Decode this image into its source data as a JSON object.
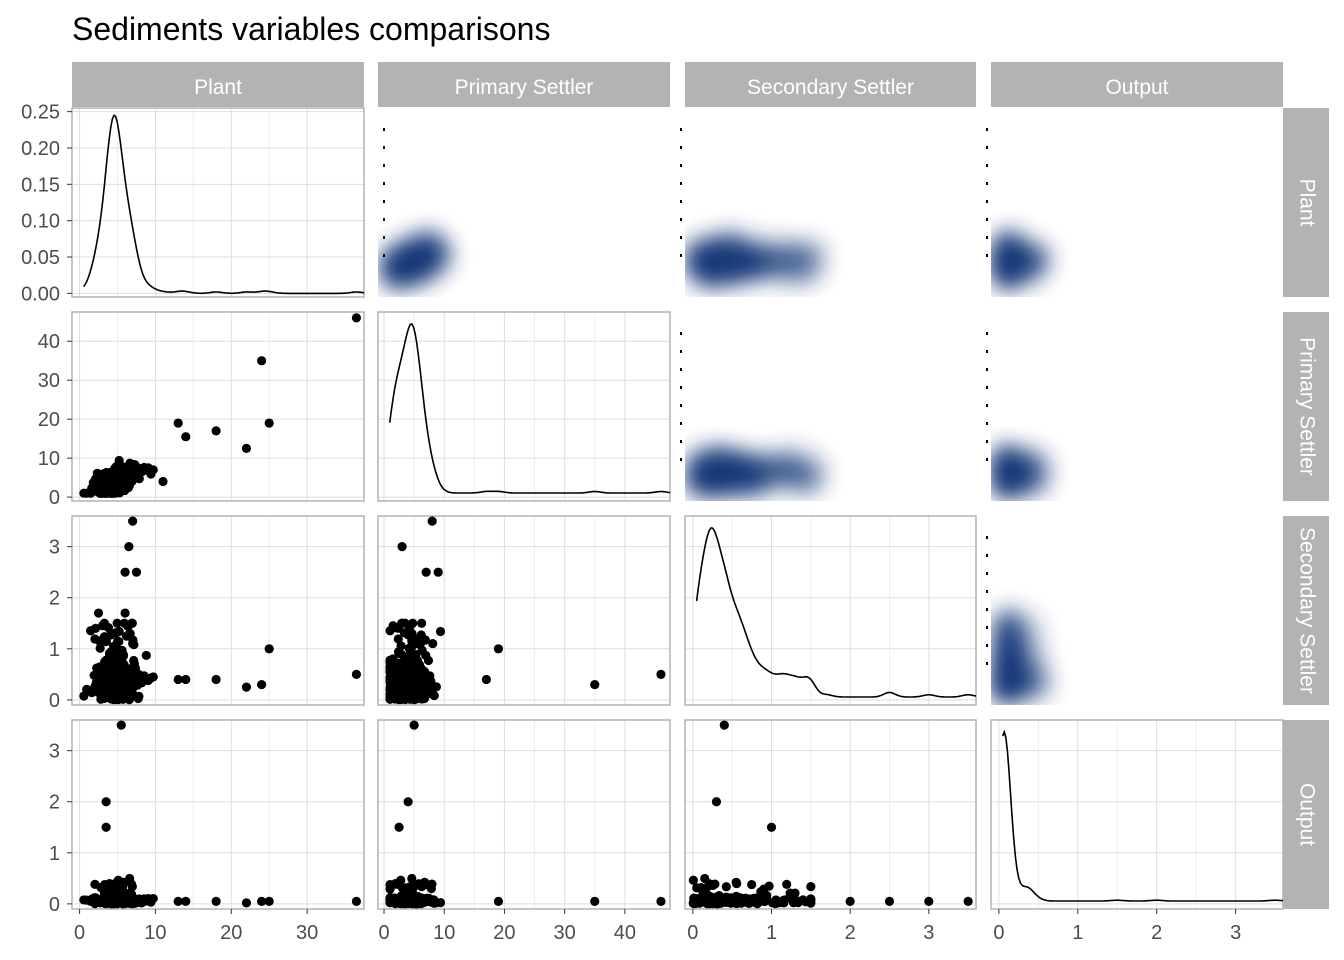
{
  "chart_data": {
    "type": "scatter",
    "title": "Sediments variables comparisons",
    "variables": [
      "Plant",
      "Primary Settler",
      "Secondary Settler",
      "Output"
    ],
    "layout": "4x4 pair matrix: diagonal = density lines, lower = scatter, upper = 2D density (blue)",
    "grid": true,
    "diag_density": {
      "Plant": {
        "peak_x": 4.5,
        "peak_y": 0.245,
        "ylim": [
          0,
          0.25
        ],
        "yticks": [
          0,
          0.05,
          0.1,
          0.15,
          0.2,
          0.25
        ]
      },
      "Primary Settler": {
        "peak_x": 3.5
      },
      "Secondary Settler": {
        "peak_x": 0.2
      },
      "Output": {
        "peak_x": 0.02
      }
    },
    "axes": {
      "Plant": {
        "lim": [
          -1,
          37.5
        ],
        "ticks": [
          0,
          10,
          20,
          30
        ]
      },
      "Primary Settler": {
        "lim": [
          -1,
          47.5
        ],
        "ticks": [
          0,
          10,
          20,
          30,
          40
        ]
      },
      "Secondary Settler": {
        "lim": [
          -0.1,
          3.6
        ],
        "ticks": [
          0,
          1,
          2,
          3
        ]
      },
      "Output": {
        "lim": [
          -0.1,
          3.6
        ],
        "ticks": [
          0,
          1,
          2,
          3
        ]
      }
    },
    "outlier_points": {
      "Plant_vs_Primary": [
        [
          36.5,
          46
        ],
        [
          24,
          35
        ],
        [
          25,
          19
        ],
        [
          22,
          12.5
        ],
        [
          18,
          17
        ],
        [
          14,
          15.5
        ],
        [
          13,
          19
        ],
        [
          11,
          4
        ]
      ],
      "Plant_vs_Secondary": [
        [
          7,
          3.5
        ],
        [
          6.5,
          3
        ],
        [
          6,
          2.5
        ],
        [
          7.5,
          2.5
        ],
        [
          2.5,
          1.7
        ],
        [
          6,
          1.7
        ],
        [
          25,
          1
        ],
        [
          36.5,
          0.5
        ],
        [
          24,
          0.3
        ],
        [
          22,
          0.25
        ],
        [
          18,
          0.4
        ],
        [
          14,
          0.4
        ],
        [
          13,
          0.4
        ]
      ],
      "Primary_vs_Secondary": [
        [
          8,
          3.5
        ],
        [
          3,
          3
        ],
        [
          7,
          2.5
        ],
        [
          9,
          2.5
        ],
        [
          19,
          1
        ],
        [
          46,
          0.5
        ],
        [
          35,
          0.3
        ],
        [
          17,
          0.4
        ]
      ],
      "Plant_vs_Output": [
        [
          5.5,
          3.5
        ],
        [
          3.5,
          2
        ],
        [
          3.5,
          1.5
        ],
        [
          36.5,
          0.05
        ],
        [
          25,
          0.05
        ],
        [
          24,
          0.05
        ],
        [
          22,
          0.02
        ],
        [
          18,
          0.05
        ],
        [
          14,
          0.05
        ],
        [
          13,
          0.05
        ]
      ],
      "Primary_vs_Output": [
        [
          5,
          3.5
        ],
        [
          4,
          2
        ],
        [
          2.5,
          1.5
        ],
        [
          46,
          0.05
        ],
        [
          35,
          0.05
        ],
        [
          19,
          0.05
        ]
      ],
      "Secondary_vs_Output": [
        [
          0.4,
          3.5
        ],
        [
          0.3,
          2
        ],
        [
          1,
          1.5
        ],
        [
          3.5,
          0.05
        ],
        [
          3,
          0.05
        ],
        [
          2.5,
          0.05
        ],
        [
          2,
          0.05
        ]
      ]
    },
    "colors": {
      "strip": "#b3b3b3",
      "strip_text": "#ffffff",
      "point": "#000000",
      "density": "#08306b",
      "grid": "#dedede",
      "panel_border": "#b3b3b3"
    }
  }
}
